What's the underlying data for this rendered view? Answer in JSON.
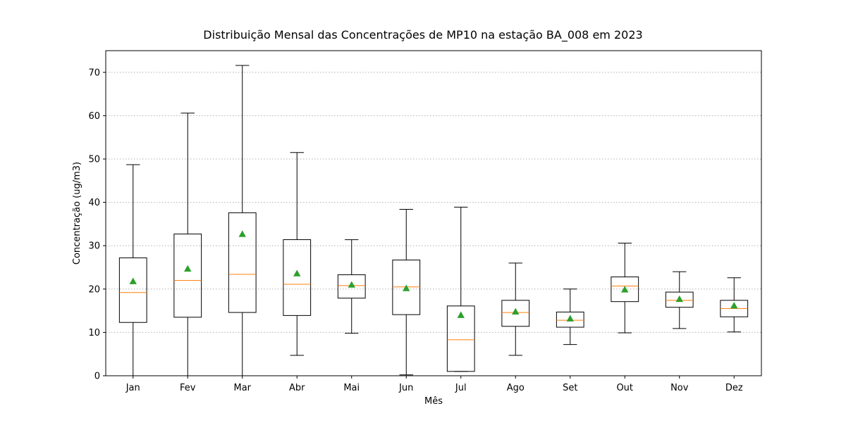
{
  "chart_data": {
    "type": "box",
    "title": "Distribuição Mensal das Concentrações de MP10 na estação BA_008 em 2023",
    "xlabel": "Mês",
    "ylabel": "Concentração (ug/m3)",
    "ylim": [
      0,
      75
    ],
    "yticks": [
      "0",
      "10",
      "20",
      "30",
      "40",
      "50",
      "60",
      "70"
    ],
    "grid": "y-dotted",
    "categories": [
      "Jan",
      "Fev",
      "Mar",
      "Abr",
      "Mai",
      "Jun",
      "Jul",
      "Ago",
      "Set",
      "Out",
      "Nov",
      "Dez"
    ],
    "boxes": [
      {
        "label": "Jan",
        "whisker_low": 0.0,
        "q1": 12.3,
        "median": 19.2,
        "q3": 27.2,
        "whisker_high": 48.7,
        "mean": 21.8
      },
      {
        "label": "Fev",
        "whisker_low": 0.0,
        "q1": 13.5,
        "median": 22.0,
        "q3": 32.7,
        "whisker_high": 60.6,
        "mean": 24.7
      },
      {
        "label": "Mar",
        "whisker_low": 0.0,
        "q1": 14.6,
        "median": 23.4,
        "q3": 37.6,
        "whisker_high": 71.6,
        "mean": 32.7
      },
      {
        "label": "Abr",
        "whisker_low": 4.7,
        "q1": 13.9,
        "median": 21.1,
        "q3": 31.4,
        "whisker_high": 51.5,
        "mean": 23.6
      },
      {
        "label": "Mai",
        "whisker_low": 9.8,
        "q1": 17.9,
        "median": 20.8,
        "q3": 23.3,
        "whisker_high": 31.4,
        "mean": 21.0
      },
      {
        "label": "Jun",
        "whisker_low": 0.2,
        "q1": 14.1,
        "median": 20.5,
        "q3": 26.7,
        "whisker_high": 38.4,
        "mean": 20.2
      },
      {
        "label": "Jul",
        "whisker_low": 1.0,
        "q1": 1.0,
        "median": 8.3,
        "q3": 16.1,
        "whisker_high": 38.9,
        "mean": 14.0
      },
      {
        "label": "Ago",
        "whisker_low": 4.7,
        "q1": 11.4,
        "median": 14.6,
        "q3": 17.4,
        "whisker_high": 26.0,
        "mean": 14.8
      },
      {
        "label": "Set",
        "whisker_low": 7.2,
        "q1": 11.2,
        "median": 12.8,
        "q3": 14.7,
        "whisker_high": 20.0,
        "mean": 13.2
      },
      {
        "label": "Out",
        "whisker_low": 9.9,
        "q1": 17.1,
        "median": 20.7,
        "q3": 22.8,
        "whisker_high": 30.6,
        "mean": 19.9
      },
      {
        "label": "Nov",
        "whisker_low": 10.9,
        "q1": 15.8,
        "median": 17.4,
        "q3": 19.3,
        "whisker_high": 24.0,
        "mean": 17.7
      },
      {
        "label": "Dez",
        "whisker_low": 10.1,
        "q1": 13.6,
        "median": 15.5,
        "q3": 17.4,
        "whisker_high": 22.6,
        "mean": 16.2
      }
    ],
    "colors": {
      "box": "#000000",
      "median": "#ff7f0e",
      "mean_marker": "#2ca02c",
      "grid": "#b0b0b0"
    }
  }
}
